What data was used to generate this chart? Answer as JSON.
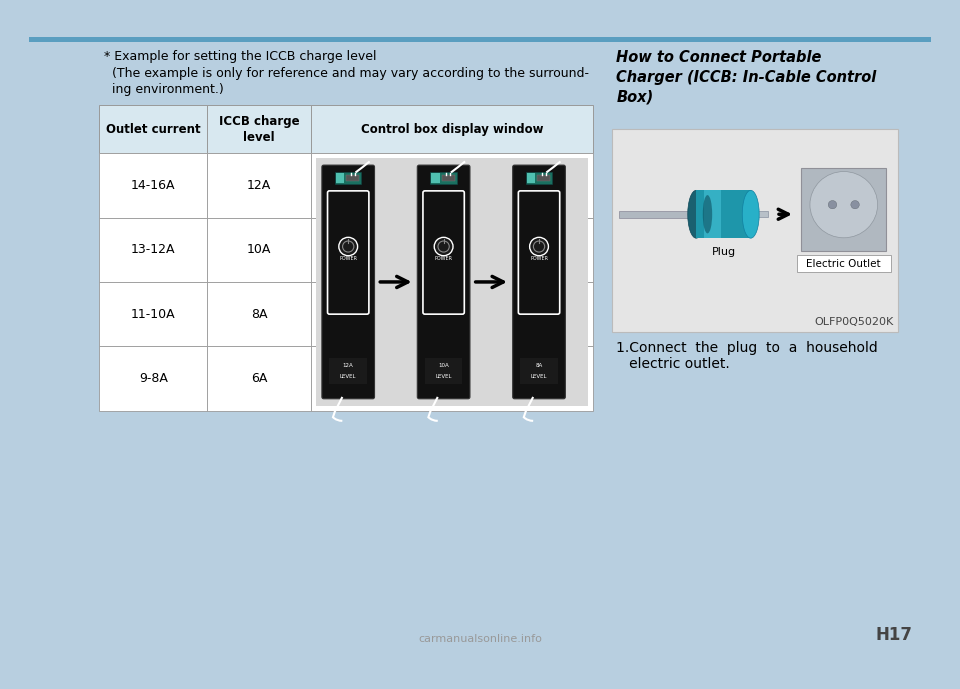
{
  "bg_color": "#b8cfe0",
  "page_bg": "#ffffff",
  "top_bar_color": "#5a9ec0",
  "title_right": "How to Connect Portable\nCharger (ICCB: In-Cable Control\nBox)",
  "note_line1": "* Example for setting the ICCB charge level",
  "note_line2": "  (The example is only for reference and may vary according to the surround-",
  "note_line3": "  ing environment.)",
  "table_header": [
    "Outlet current",
    "ICCB charge\nlevel",
    "Control box display window"
  ],
  "table_rows": [
    [
      "14-16A",
      "12A"
    ],
    [
      "13-12A",
      "10A"
    ],
    [
      "11-10A",
      "8A"
    ],
    [
      "9-8A",
      "6A"
    ]
  ],
  "image_code": "OLFP0Q5020K",
  "page_number": "H17",
  "watermark": "carmanualsonline.info",
  "table_header_bg": "#d8e8f0",
  "table_border": "#999999",
  "plug_label": "Plug",
  "outlet_label": "Electric Outlet"
}
